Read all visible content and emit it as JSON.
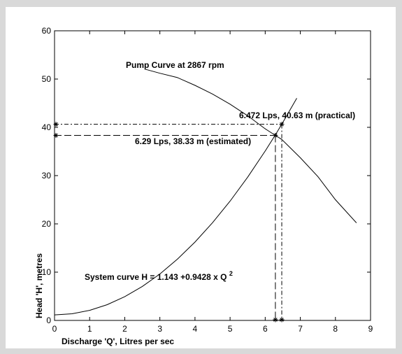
{
  "chart_data": {
    "type": "line",
    "title": "",
    "xlabel": "Discharge 'Q', Litres per sec",
    "ylabel": "Head 'H', metres",
    "xlim": [
      0,
      9
    ],
    "ylim": [
      0,
      60
    ],
    "x_ticks": [
      "0",
      "1",
      "2",
      "3",
      "4",
      "5",
      "6",
      "7",
      "8",
      "9"
    ],
    "y_ticks": [
      "0",
      "10",
      "20",
      "30",
      "40",
      "50",
      "60"
    ],
    "grid": false,
    "series": [
      {
        "name": "Pump Curve at 2867 rpm",
        "x": [
          2.6,
          3.0,
          3.5,
          4.0,
          4.5,
          5.0,
          5.5,
          6.0,
          6.29,
          6.472,
          7.0,
          7.5,
          8.0,
          8.6
        ],
        "y": [
          52.0,
          51.2,
          50.3,
          48.7,
          46.9,
          44.8,
          42.4,
          39.7,
          38.33,
          37.5,
          33.7,
          29.8,
          25.0,
          20.2
        ]
      },
      {
        "name": "System curve H = 1.143 + 0.9428 x Q",
        "x": [
          0,
          0.5,
          1.0,
          1.5,
          2.0,
          2.5,
          3.0,
          3.5,
          4.0,
          4.5,
          5.0,
          5.5,
          6.0,
          6.29,
          6.5,
          6.9
        ],
        "y": [
          1.14,
          1.38,
          2.09,
          3.26,
          4.91,
          7.04,
          9.63,
          12.69,
          16.23,
          20.24,
          24.71,
          29.66,
          35.08,
          38.44,
          40.98,
          46.03
        ]
      }
    ],
    "operating_points": [
      {
        "label": "6.472 Lps, 40.63 m (practical)",
        "x": 6.472,
        "y": 40.63
      },
      {
        "label": "6.29 Lps, 38.33 m  (estimated)",
        "x": 6.29,
        "y": 38.33
      }
    ],
    "annotations": {
      "pump_curve": "Pump Curve at 2867 rpm",
      "system_curve": "System curve H = 1.143 +0.9428 x Q",
      "system_curve_exponent": "2"
    },
    "colors": {
      "line": "#000000",
      "plot_background": "#ffffff",
      "figure_background": "#d9d9d9"
    }
  }
}
